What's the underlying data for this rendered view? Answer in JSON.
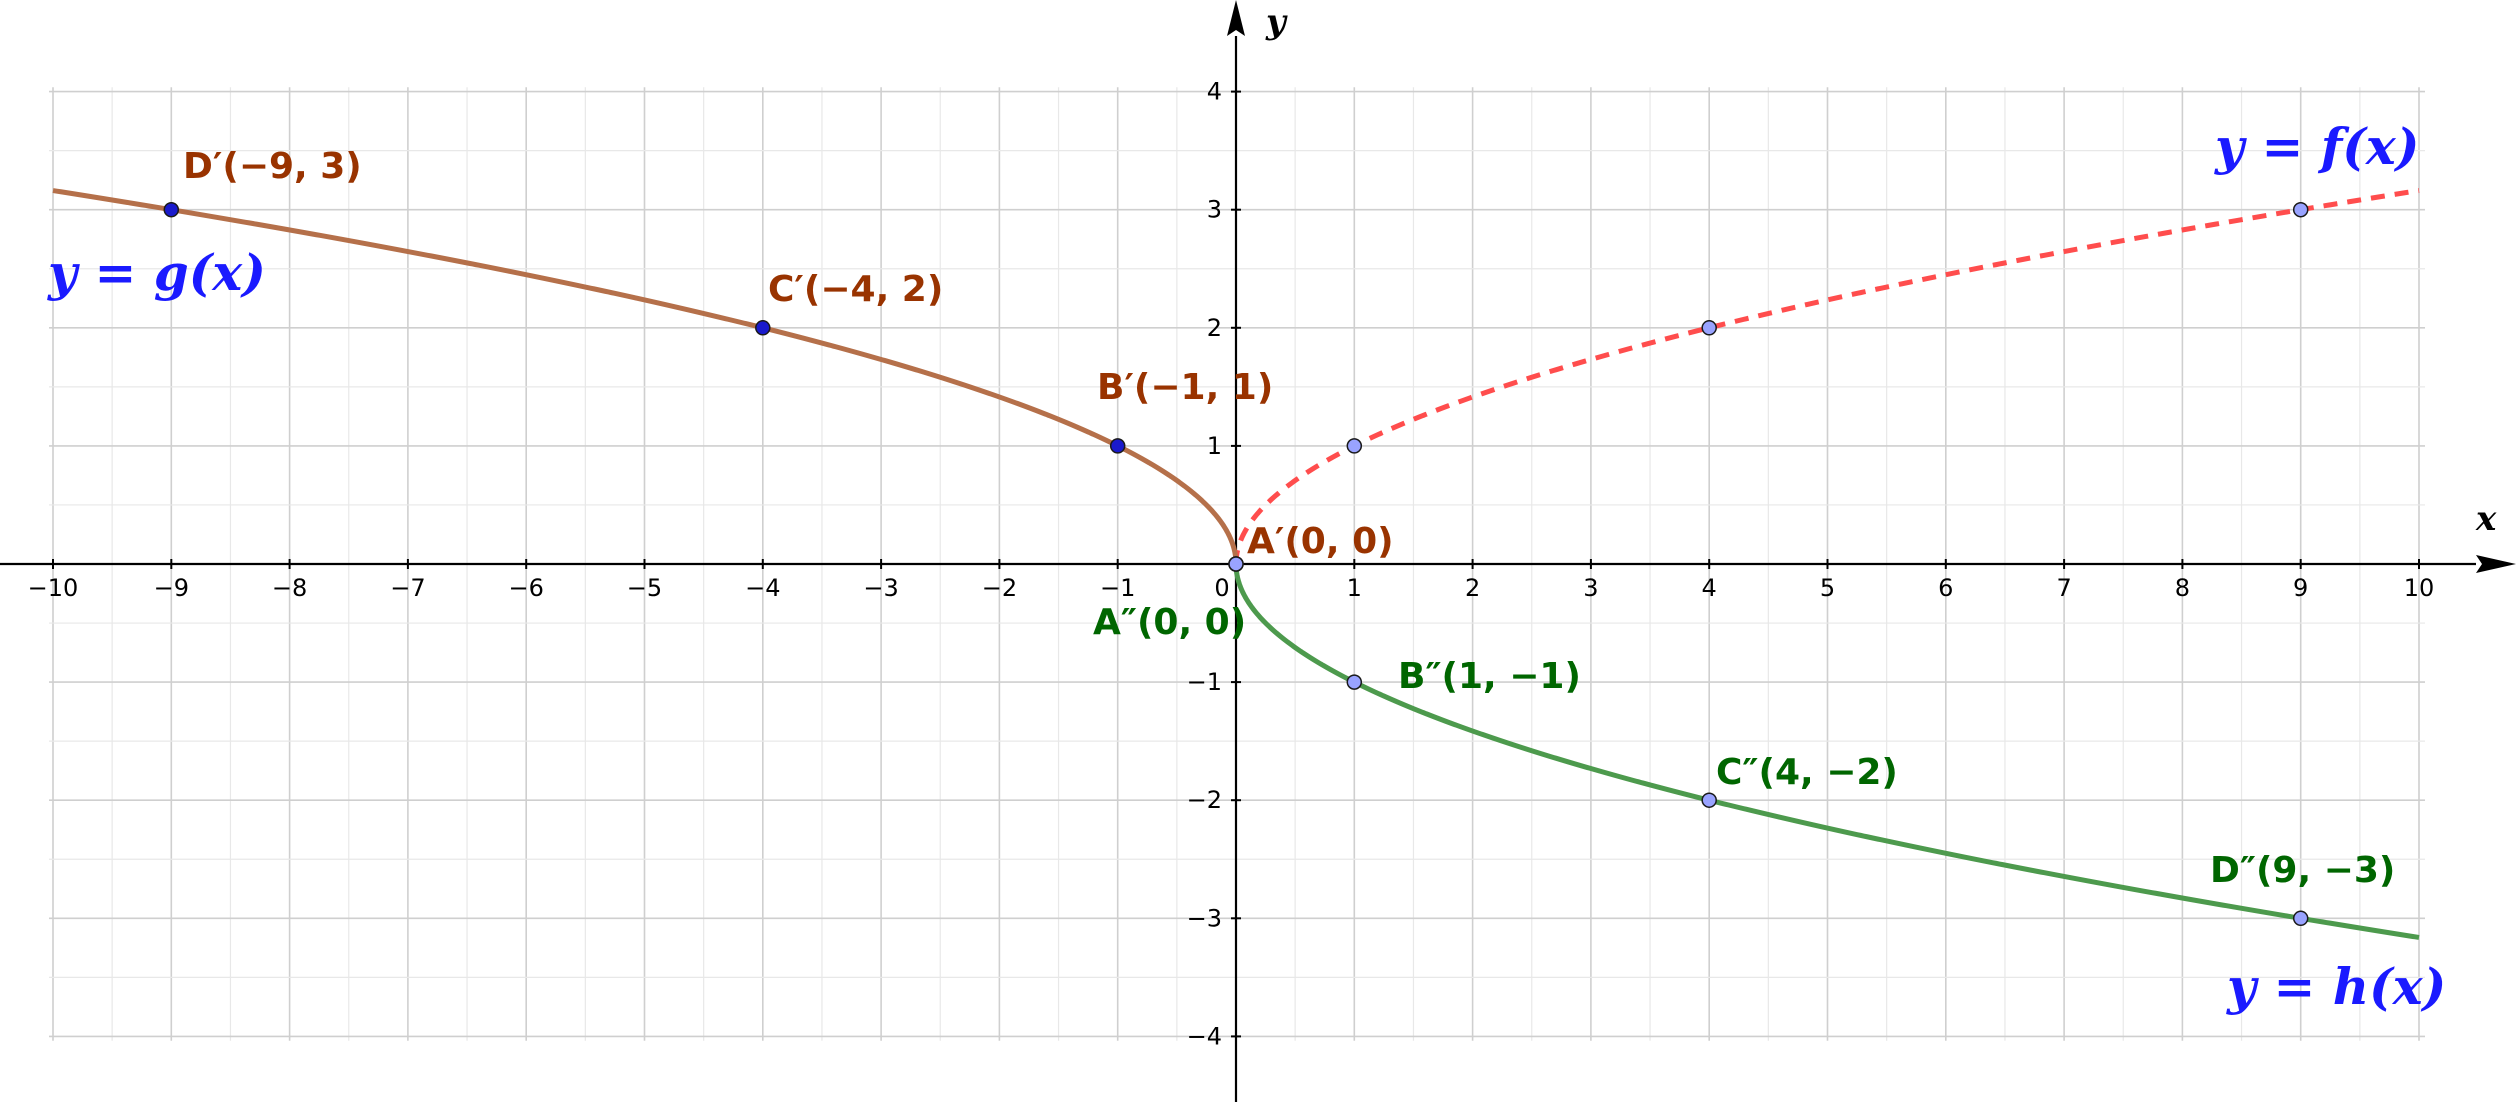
{
  "chart_data": {
    "type": "line",
    "xlabel": "x",
    "ylabel": "y",
    "xlim": [
      -10,
      10
    ],
    "ylim": [
      -4,
      4
    ],
    "grid": true,
    "x_ticks": [
      "−10",
      "−9",
      "−8",
      "−7",
      "−6",
      "−5",
      "−4",
      "−3",
      "−2",
      "−1",
      "0",
      "1",
      "2",
      "3",
      "4",
      "5",
      "6",
      "7",
      "8",
      "9",
      "10"
    ],
    "y_ticks": [
      "−4",
      "−3",
      "−2",
      "−1",
      "1",
      "2",
      "3",
      "4"
    ],
    "series": [
      {
        "name": "y = f(x)",
        "function": "sqrt(x)",
        "domain": [
          0,
          10
        ],
        "style": "dashed",
        "color": "#ff4d4d",
        "point_color": "#99a3ff",
        "points": [
          {
            "x": 0,
            "y": 0
          },
          {
            "x": 1,
            "y": 1
          },
          {
            "x": 4,
            "y": 2
          },
          {
            "x": 9,
            "y": 3
          }
        ]
      },
      {
        "name": "y = g(x)",
        "function": "sqrt(-x)",
        "domain": [
          -10,
          0
        ],
        "style": "solid",
        "color": "#b5704a",
        "label_color": "#993300",
        "point_color": "#1a1acc",
        "points": [
          {
            "x": 0,
            "y": 0,
            "label": "A′(0, 0)"
          },
          {
            "x": -1,
            "y": 1,
            "label": "B′(−1, 1)"
          },
          {
            "x": -4,
            "y": 2,
            "label": "C′(−4, 2)"
          },
          {
            "x": -9,
            "y": 3,
            "label": "D′(−9, 3)"
          }
        ]
      },
      {
        "name": "y = h(x)",
        "function": "-sqrt(x)",
        "domain": [
          0,
          10
        ],
        "style": "solid",
        "color": "#4d9a4d",
        "label_color": "#006600",
        "point_color": "#99a3ff",
        "points": [
          {
            "x": 0,
            "y": 0,
            "label": "A″(0, 0)"
          },
          {
            "x": 1,
            "y": -1,
            "label": "B″(1, −1)"
          },
          {
            "x": 4,
            "y": -2,
            "label": "C″(4, −2)"
          },
          {
            "x": 9,
            "y": -3,
            "label": "D″(9, −3)"
          }
        ]
      }
    ],
    "function_labels": [
      {
        "text": "y = f(x)",
        "color": "#1a1aff"
      },
      {
        "text": "y = g(x)",
        "color": "#1a1aff"
      },
      {
        "text": "y = h(x)",
        "color": "#1a1aff"
      }
    ]
  }
}
